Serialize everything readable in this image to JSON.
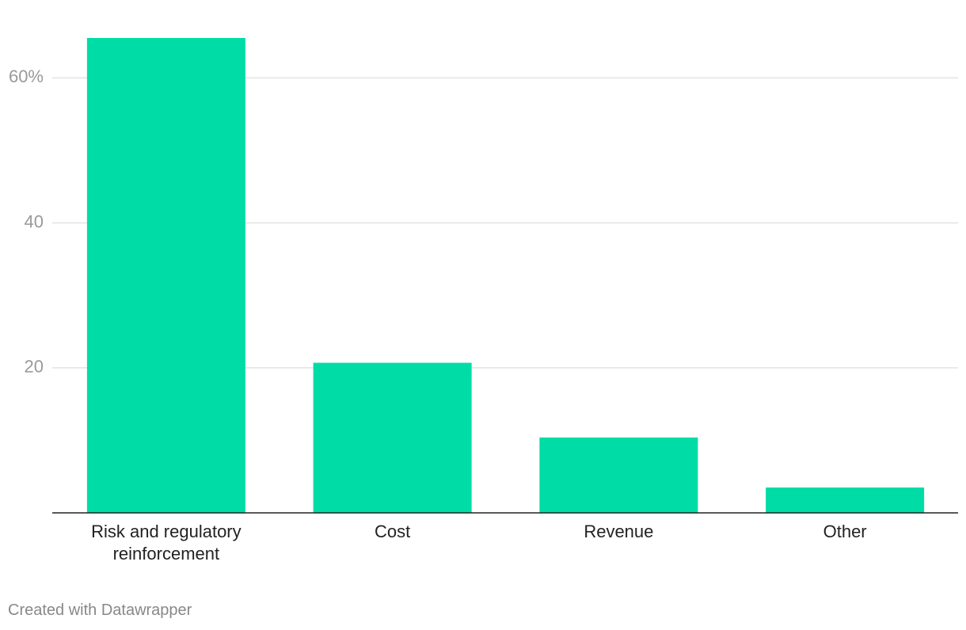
{
  "chart_data": {
    "type": "bar",
    "categories": [
      "Risk and regulatory reinforcement",
      "Cost",
      "Revenue",
      "Other"
    ],
    "values": [
      65.5,
      20.7,
      10.4,
      3.5
    ],
    "color": "#00dca6",
    "ylim": [
      0,
      65.5
    ],
    "yticks": [
      20,
      40,
      {
        "value": 60,
        "label": "60%"
      }
    ],
    "grid": true,
    "footer": "Created with Datawrapper"
  }
}
